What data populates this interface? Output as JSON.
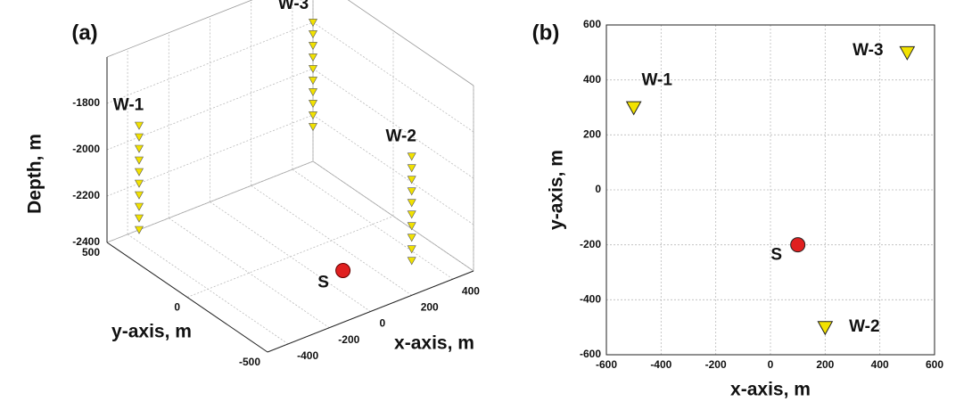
{
  "chart_data": [
    {
      "type": "scatter3d",
      "title": "(a)",
      "xlabel": "x-axis, m",
      "ylabel": "y-axis, m",
      "zlabel": "Depth, m",
      "xlim": [
        -500,
        500
      ],
      "xticks": [
        -400,
        -200,
        0,
        200,
        400
      ],
      "ylim": [
        -500,
        500
      ],
      "yticks": [
        -500,
        0,
        500
      ],
      "zlim": [
        -2400,
        -1600
      ],
      "zticks": [
        -2400,
        -2200,
        -2000,
        -1800
      ],
      "grid": true,
      "series": [
        {
          "name": "W-1",
          "color": "#f2e200",
          "marker": "triangle-down",
          "x": -500,
          "y": 300,
          "z": [
            -1800,
            -1850,
            -1900,
            -1950,
            -2000,
            -2050,
            -2100,
            -2150,
            -2200,
            -2250
          ]
        },
        {
          "name": "W-2",
          "color": "#f2e200",
          "marker": "triangle-down",
          "x": 200,
          "y": -500,
          "z": [
            -1800,
            -1850,
            -1900,
            -1950,
            -2000,
            -2050,
            -2100,
            -2150,
            -2200,
            -2250
          ]
        },
        {
          "name": "W-3",
          "color": "#f2e200",
          "marker": "triangle-down",
          "x": 500,
          "y": 500,
          "z": [
            -1800,
            -1850,
            -1900,
            -1950,
            -2000,
            -2050,
            -2100,
            -2150,
            -2200,
            -2250
          ]
        },
        {
          "name": "S",
          "color": "#e02020",
          "marker": "circle",
          "x": 100,
          "y": -200,
          "z": [
            -2400
          ]
        }
      ]
    },
    {
      "type": "scatter",
      "title": "(b)",
      "xlabel": "x-axis, m",
      "ylabel": "y-axis, m",
      "xlim": [
        -600,
        600
      ],
      "xticks": [
        -600,
        -400,
        -200,
        0,
        200,
        400,
        600
      ],
      "ylim": [
        -600,
        600
      ],
      "yticks": [
        -600,
        -400,
        -200,
        0,
        200,
        400,
        600
      ],
      "grid": true,
      "series": [
        {
          "name": "W-1",
          "color": "#f2e200",
          "marker": "triangle-down",
          "x": [
            -500
          ],
          "y": [
            300
          ]
        },
        {
          "name": "W-2",
          "color": "#f2e200",
          "marker": "triangle-down",
          "x": [
            200
          ],
          "y": [
            -500
          ]
        },
        {
          "name": "W-3",
          "color": "#f2e200",
          "marker": "triangle-down",
          "x": [
            500
          ],
          "y": [
            500
          ]
        },
        {
          "name": "S",
          "color": "#e02020",
          "marker": "circle",
          "x": [
            100
          ],
          "y": [
            -200
          ]
        }
      ]
    }
  ]
}
